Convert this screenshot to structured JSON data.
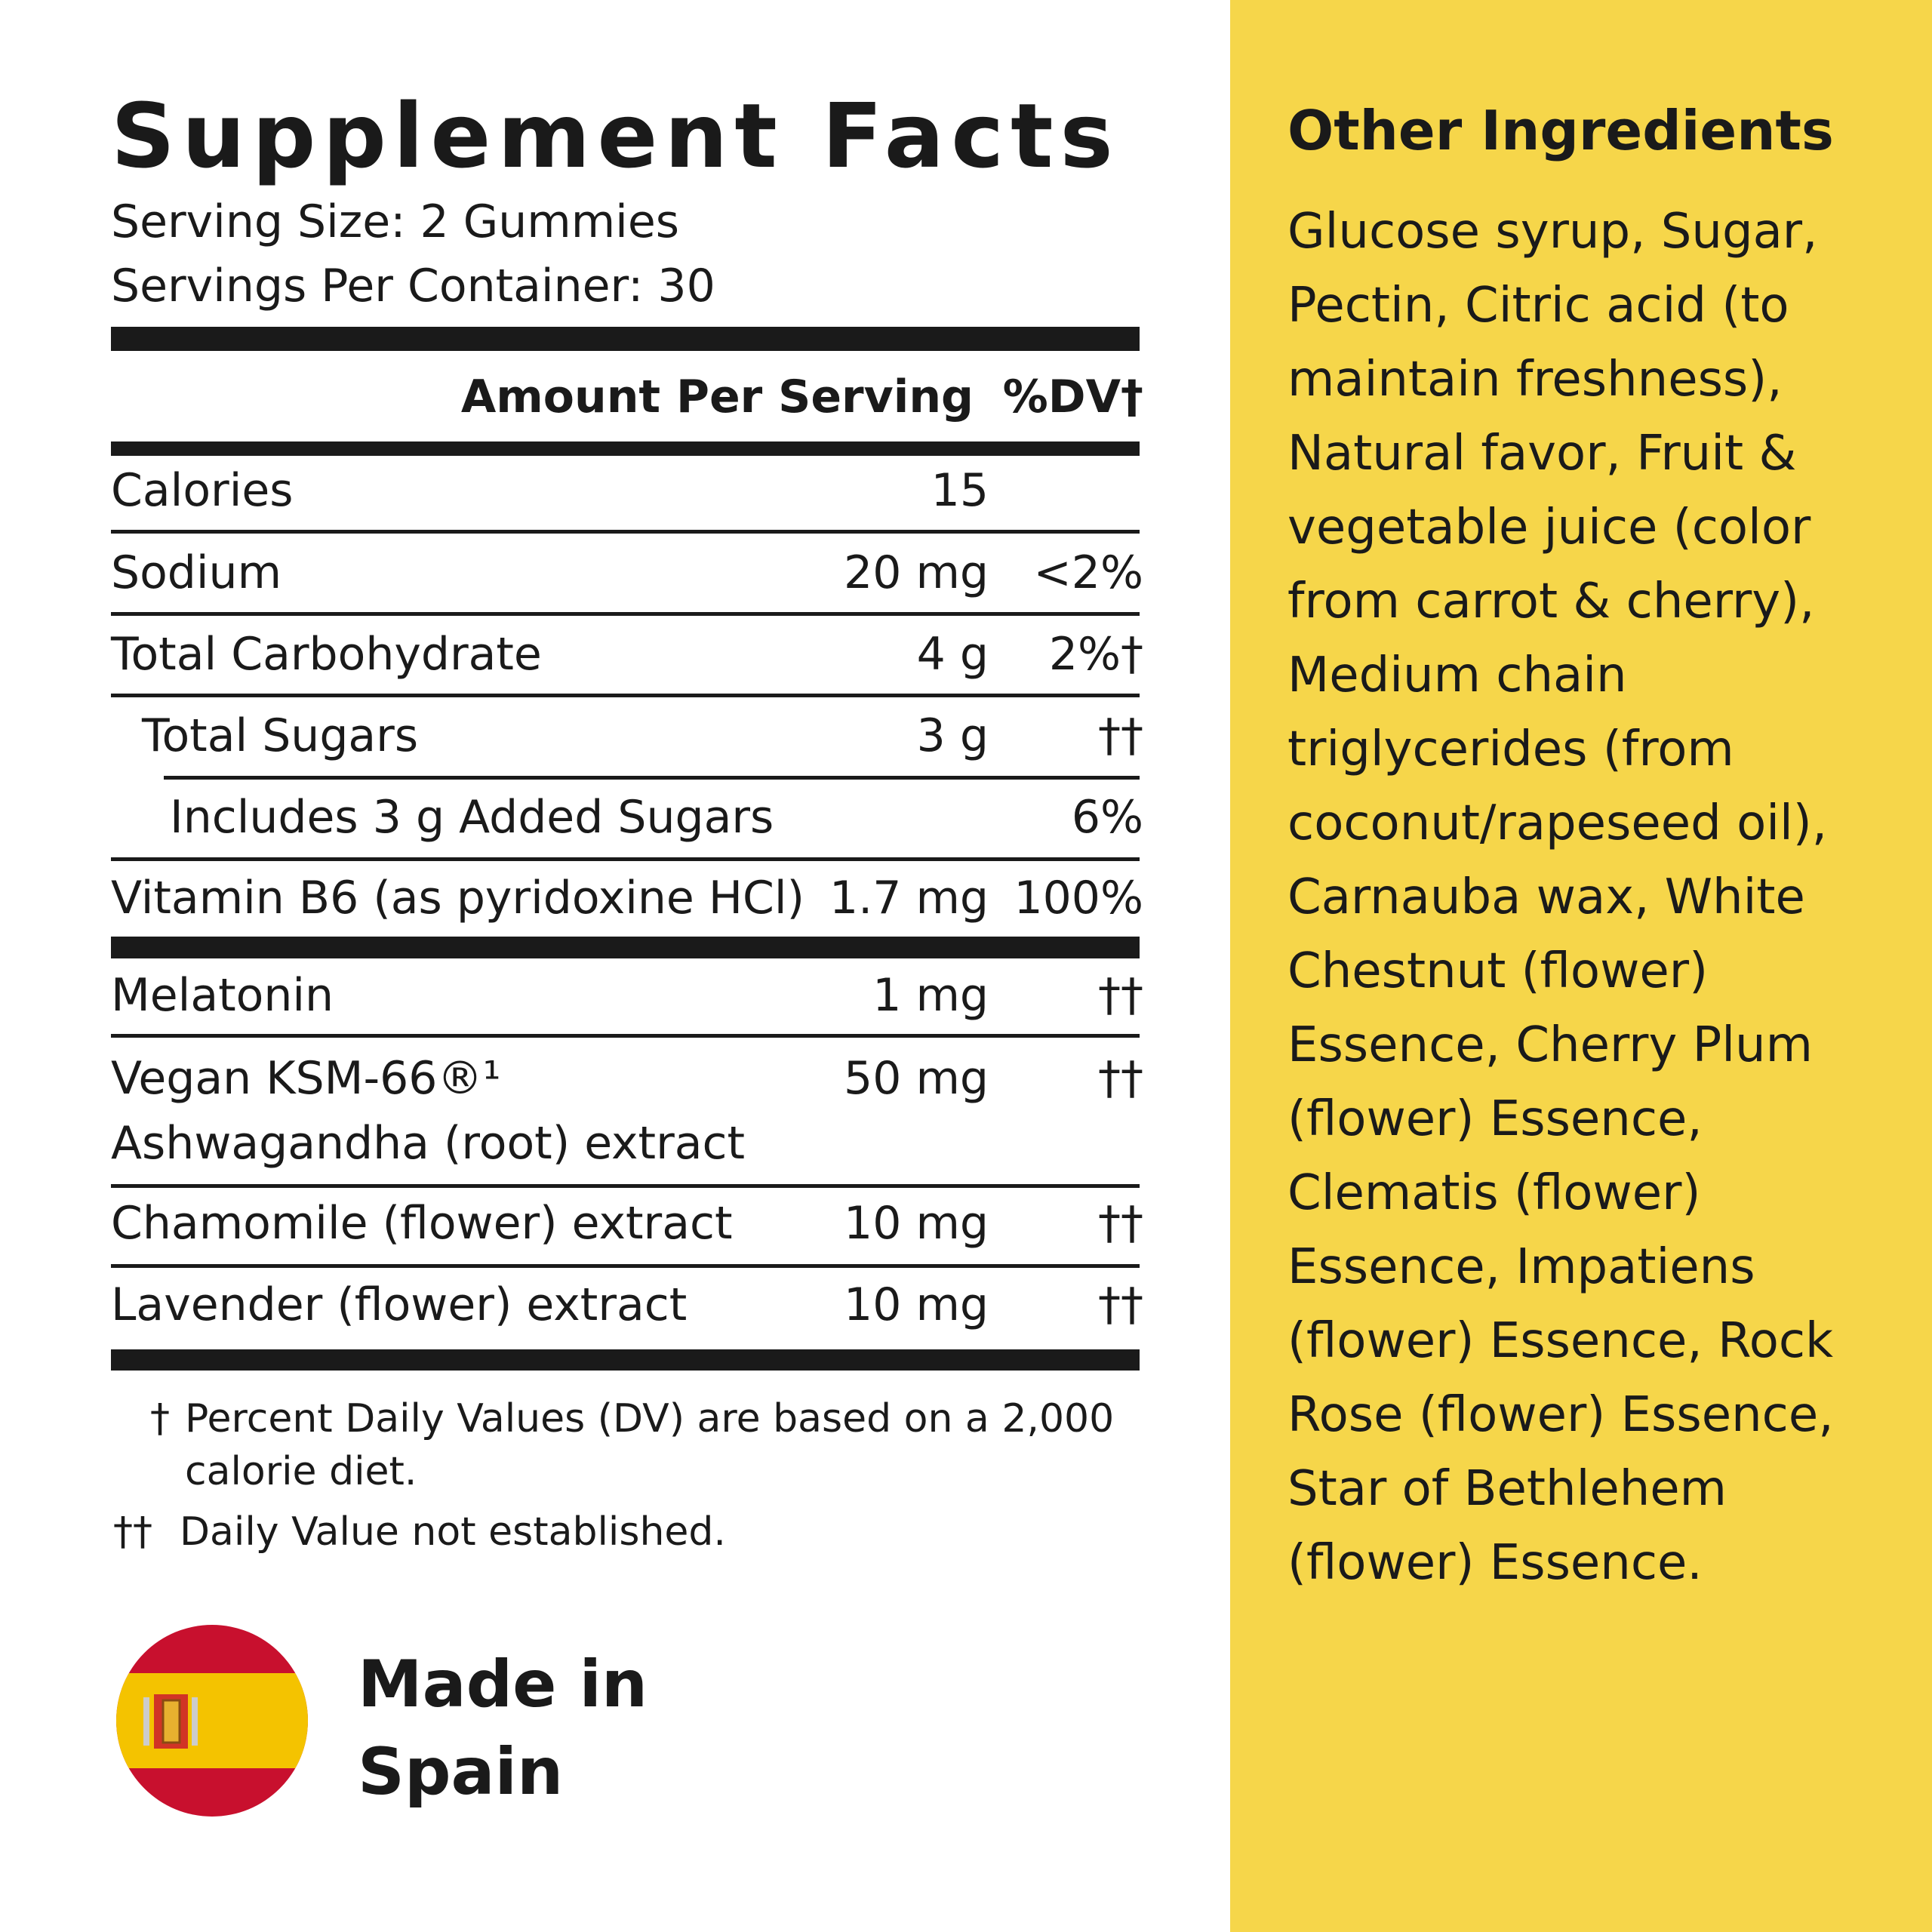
{
  "supplement_facts": {
    "title": "Supplement Facts",
    "serving_size": "Serving Size: 2 Gummies",
    "servings_per_container": "Servings Per Container: 30",
    "header": {
      "amount": "Amount Per Serving",
      "dv": "%DV†"
    },
    "rows": [
      {
        "name": "Calories",
        "amount": "15"
      },
      {
        "name": "Sodium",
        "amount": "20 mg",
        "dv": "<2%"
      },
      {
        "name": "Total Carbohydrate",
        "amount": "4 g",
        "dv": "2%†"
      },
      {
        "name": "Total Sugars",
        "amount": "3 g",
        "dv": "††"
      },
      {
        "name": "Includes 3 g Added Sugars",
        "dv": "6%"
      },
      {
        "name": "Vitamin B6 (as pyridoxine HCl)",
        "amount": "1.7 mg",
        "dv": "100%"
      },
      {
        "name": "Melatonin",
        "amount": "1 mg",
        "dv": "††"
      },
      {
        "name": "Vegan KSM-66®¹ Ashwagandha (root) extract",
        "amount": "50 mg",
        "dv": "††"
      },
      {
        "name": "Chamomile (flower) extract",
        "amount": "10 mg",
        "dv": "††"
      },
      {
        "name": "Lavender (flower) extract",
        "amount": "10 mg",
        "dv": "††"
      }
    ],
    "footnotes": [
      {
        "mark": "†",
        "text": "Percent Daily Values (DV) are based on a 2,000 calorie diet."
      },
      {
        "mark": "††",
        "text": "Daily Value not established."
      }
    ]
  },
  "origin": {
    "lines": [
      "Made in",
      "Spain"
    ]
  },
  "other_ingredients": {
    "title": "Other Ingredients",
    "text": "Glucose syrup, Sugar, Pectin, Citric acid (to maintain freshness), Natural favor, Fruit & vegetable juice (color from carrot & cherry), Medium chain triglycerides (from coconut/rapeseed oil), Carnauba wax, White Chestnut (flower) Essence, Cherry Plum (flower) Essence, Clematis (flower) Essence, Impatiens (flower) Essence, Rock Rose (flower) Essence, Star of Bethlehem (flower) Essence."
  }
}
